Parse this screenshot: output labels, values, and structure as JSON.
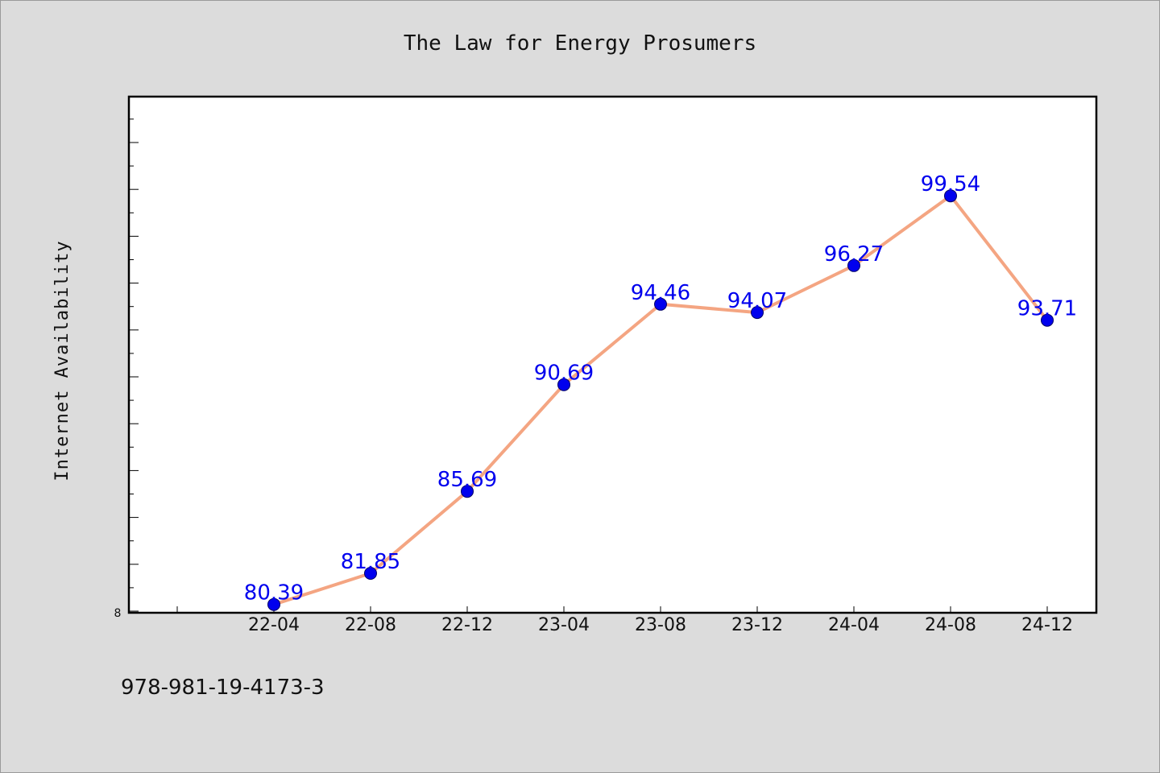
{
  "chart_data": {
    "type": "line",
    "title": "The Law for Energy Prosumers",
    "xlabel": "",
    "ylabel": "Internet Availability",
    "categories": [
      "22-04",
      "22-08",
      "22-12",
      "23-04",
      "23-08",
      "23-12",
      "24-04",
      "24-08",
      "24-12"
    ],
    "series": [
      {
        "values": [
          80.39,
          81.85,
          85.69,
          90.69,
          94.46,
          94.07,
          96.27,
          99.54,
          93.71
        ],
        "labels": [
          "80.39",
          "81.85",
          "85.69",
          "90.69",
          "94.46",
          "94.07",
          "96.27",
          "99.54",
          "93.71"
        ]
      }
    ],
    "y_tick_label": "8",
    "ylim": [
      80.0,
      102.0
    ],
    "grid": false,
    "legend": "none",
    "colors": {
      "line": "#f4a582",
      "marker": "#0000ee",
      "label": "#0000ee"
    }
  },
  "footer": {
    "isbn": "978-981-19-4173-3"
  }
}
